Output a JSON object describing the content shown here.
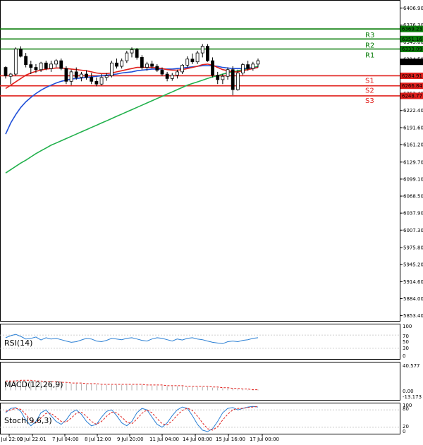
{
  "chart_data": {
    "type": "candlestick",
    "main": {
      "ylim": [
        5844.0,
        6420.0
      ],
      "y_ticks": [
        "6406.90",
        "6376.30",
        "6345.60",
        "6314.50",
        "6284.91",
        "6253.40",
        "6222.40",
        "6191.60",
        "6161.20",
        "6129.70",
        "6099.10",
        "6068.50",
        "6037.90",
        "6007.30",
        "5975.80",
        "5945.20",
        "5914.60",
        "5884.00",
        "5853.40"
      ],
      "price_tag": "6310.00",
      "levels": [
        {
          "name": "R3",
          "value": "6369.23",
          "price": 6369.23,
          "color": "#0a7d0a"
        },
        {
          "name": "R2",
          "value": "6351.16",
          "price": 6351.16,
          "color": "#0a7d0a"
        },
        {
          "name": "R1",
          "value": "6333.09",
          "price": 6333.09,
          "color": "#0a7d0a"
        },
        {
          "name": "S1",
          "value": "6284.91",
          "price": 6284.91,
          "color": "#e0201c"
        },
        {
          "name": "S2",
          "value": "6266.84",
          "price": 6266.84,
          "color": "#e0201c"
        },
        {
          "name": "S3",
          "value": "6248.77",
          "price": 6248.77,
          "color": "#e0201c"
        }
      ],
      "candles": [
        [
          6300,
          6302,
          6280,
          6285
        ],
        [
          6284,
          6290,
          6270,
          6288
        ],
        [
          6288,
          6336,
          6285,
          6333
        ],
        [
          6333,
          6338,
          6318,
          6320
        ],
        [
          6320,
          6326,
          6300,
          6305
        ],
        [
          6305,
          6312,
          6288,
          6300
        ],
        [
          6300,
          6306,
          6290,
          6296
        ],
        [
          6296,
          6310,
          6292,
          6308
        ],
        [
          6308,
          6312,
          6295,
          6298
        ],
        [
          6298,
          6312,
          6292,
          6306
        ],
        [
          6306,
          6315,
          6300,
          6312
        ],
        [
          6312,
          6316,
          6295,
          6298
        ],
        [
          6298,
          6302,
          6270,
          6275
        ],
        [
          6275,
          6296,
          6268,
          6292
        ],
        [
          6292,
          6300,
          6278,
          6282
        ],
        [
          6282,
          6292,
          6275,
          6288
        ],
        [
          6288,
          6295,
          6278,
          6282
        ],
        [
          6282,
          6290,
          6270,
          6275
        ],
        [
          6275,
          6282,
          6266,
          6270
        ],
        [
          6270,
          6288,
          6268,
          6282
        ],
        [
          6282,
          6290,
          6276,
          6285
        ],
        [
          6285,
          6312,
          6282,
          6308
        ],
        [
          6308,
          6316,
          6298,
          6302
        ],
        [
          6302,
          6316,
          6298,
          6312
        ],
        [
          6312,
          6330,
          6308,
          6326
        ],
        [
          6326,
          6336,
          6318,
          6332
        ],
        [
          6332,
          6335,
          6314,
          6318
        ],
        [
          6318,
          6322,
          6296,
          6300
        ],
        [
          6300,
          6310,
          6294,
          6306
        ],
        [
          6306,
          6312,
          6298,
          6302
        ],
        [
          6302,
          6306,
          6292,
          6295
        ],
        [
          6295,
          6300,
          6285,
          6288
        ],
        [
          6288,
          6292,
          6275,
          6280
        ],
        [
          6280,
          6290,
          6276,
          6286
        ],
        [
          6286,
          6296,
          6280,
          6292
        ],
        [
          6292,
          6306,
          6288,
          6304
        ],
        [
          6304,
          6320,
          6300,
          6315
        ],
        [
          6315,
          6325,
          6306,
          6310
        ],
        [
          6310,
          6330,
          6306,
          6326
        ],
        [
          6326,
          6342,
          6318,
          6338
        ],
        [
          6338,
          6342,
          6310,
          6312
        ],
        [
          6312,
          6318,
          6282,
          6286
        ],
        [
          6286,
          6292,
          6270,
          6278
        ],
        [
          6278,
          6288,
          6270,
          6284
        ],
        [
          6284,
          6300,
          6278,
          6296
        ],
        [
          6296,
          6302,
          6250,
          6260
        ],
        [
          6260,
          6296,
          6258,
          6290
        ],
        [
          6290,
          6308,
          6286,
          6305
        ],
        [
          6305,
          6312,
          6294,
          6298
        ],
        [
          6298,
          6310,
          6294,
          6306
        ],
        [
          6306,
          6316,
          6300,
          6312
        ]
      ],
      "ma_red": [
        6262,
        6268,
        6274,
        6280,
        6286,
        6290,
        6293,
        6295,
        6297,
        6298,
        6299,
        6299,
        6298,
        6297,
        6296,
        6295,
        6294,
        6292,
        6290,
        6289,
        6289,
        6290,
        6292,
        6294,
        6296,
        6298,
        6300,
        6300,
        6300,
        6300,
        6299,
        6298,
        6296,
        6295,
        6295,
        6296,
        6298,
        6300,
        6302,
        6305,
        6306,
        6304,
        6300,
        6296,
        6294,
        6292,
        6292,
        6294,
        6296,
        6298,
        6300
      ],
      "ma_blue": [
        6180,
        6200,
        6215,
        6228,
        6238,
        6246,
        6253,
        6259,
        6264,
        6268,
        6272,
        6275,
        6277,
        6279,
        6280,
        6281,
        6282,
        6283,
        6284,
        6285,
        6286,
        6287,
        6288,
        6290,
        6291,
        6292,
        6294,
        6295,
        6296,
        6297,
        6297,
        6297,
        6297,
        6297,
        6298,
        6299,
        6300,
        6301,
        6302,
        6303,
        6303,
        6303,
        6302,
        6300,
        6299,
        6298,
        6298,
        6298,
        6299,
        6299,
        6300
      ],
      "ma_green": [
        6110,
        6116,
        6122,
        6128,
        6133,
        6139,
        6145,
        6150,
        6155,
        6160,
        6164,
        6168,
        6172,
        6176,
        6180,
        6184,
        6188,
        6192,
        6196,
        6200,
        6204,
        6208,
        6212,
        6216,
        6220,
        6224,
        6228,
        6232,
        6236,
        6240,
        6244,
        6248,
        6252,
        6256,
        6260,
        6264,
        6268,
        6271,
        6274,
        6277,
        6280,
        6283,
        6285,
        6288,
        6290,
        6292,
        6294,
        6296,
        6298,
        6300,
        6302
      ]
    },
    "x_ticks": [
      "2 Jul 22:00",
      "3 Jul 22:01",
      "7 Jul 04:00",
      "8 Jul 12:00",
      "9 Jul 20:00",
      "11 Jul 04:00",
      "14 Jul 08:00",
      "15 Jul 16:00",
      "17 Jul 00:00"
    ],
    "rsi": {
      "label": "RSI(14)",
      "ticks": [
        "100",
        "70",
        "50",
        "30",
        "0"
      ],
      "ylim": [
        0,
        100
      ],
      "values": [
        62,
        68,
        72,
        66,
        58,
        60,
        64,
        55,
        62,
        58,
        60,
        56,
        52,
        48,
        50,
        55,
        60,
        58,
        52,
        50,
        54,
        60,
        58,
        56,
        60,
        62,
        58,
        54,
        52,
        58,
        62,
        60,
        56,
        52,
        58,
        55,
        60,
        62,
        58,
        56,
        52,
        48,
        46,
        44,
        50,
        52,
        50,
        54,
        56,
        60,
        62
      ]
    },
    "macd": {
      "label": "MACD(12,26,9)",
      "ticks": [
        "40.577",
        "0.00",
        "-13.173"
      ],
      "ylim": [
        -13.173,
        40.577
      ],
      "histogram": [
        14,
        14,
        15,
        15,
        14,
        14,
        13,
        13,
        12,
        12,
        11,
        11,
        11,
        10,
        10,
        10,
        9,
        9,
        9,
        8,
        8,
        8,
        8,
        8,
        8,
        8,
        8,
        8,
        7,
        7,
        7,
        7,
        6,
        6,
        6,
        6,
        5,
        5,
        5,
        5,
        5,
        4,
        4,
        3,
        3,
        3,
        2,
        2,
        1,
        1,
        1
      ],
      "signal": [
        14,
        14,
        14,
        15,
        15,
        15,
        14,
        14,
        13,
        13,
        13,
        12,
        12,
        11,
        11,
        11,
        10,
        10,
        10,
        9,
        9,
        9,
        9,
        9,
        9,
        9,
        9,
        9,
        8,
        8,
        8,
        8,
        7,
        7,
        7,
        7,
        6,
        6,
        6,
        6,
        6,
        5,
        5,
        4,
        4,
        3,
        3,
        2,
        2,
        1,
        1
      ]
    },
    "stoch": {
      "label": "Stoch(9,6,3)",
      "ticks": [
        "100",
        "80",
        "20",
        "0"
      ],
      "ylim": [
        0,
        100
      ],
      "k": [
        70,
        85,
        88,
        75,
        45,
        25,
        40,
        70,
        80,
        60,
        40,
        30,
        45,
        70,
        80,
        65,
        40,
        25,
        30,
        55,
        75,
        80,
        60,
        35,
        25,
        40,
        70,
        85,
        80,
        55,
        30,
        20,
        35,
        60,
        80,
        90,
        85,
        60,
        30,
        10,
        5,
        15,
        40,
        70,
        85,
        88,
        80,
        85,
        90,
        92,
        90
      ],
      "d": [
        75,
        80,
        85,
        82,
        65,
        42,
        35,
        52,
        68,
        68,
        55,
        40,
        38,
        52,
        68,
        72,
        58,
        40,
        30,
        40,
        58,
        72,
        70,
        55,
        38,
        32,
        48,
        68,
        80,
        70,
        50,
        32,
        28,
        42,
        62,
        78,
        86,
        78,
        58,
        35,
        15,
        10,
        22,
        45,
        65,
        80,
        85,
        85,
        88,
        90,
        92
      ]
    }
  }
}
